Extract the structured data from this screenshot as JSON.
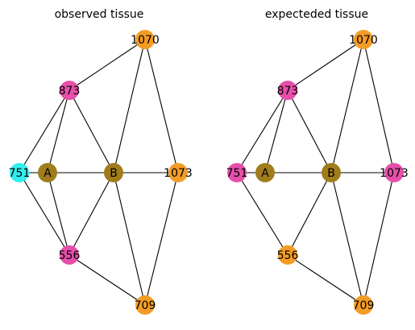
{
  "colors": {
    "olive": "#a07c1c",
    "pink": "#e64fa9",
    "orange": "#f39c25",
    "cyan": "#2ff0ee",
    "edge": "#000000"
  },
  "panels": [
    {
      "title": "observed tissue",
      "nodes": [
        {
          "id": "1070",
          "label": "1070",
          "color": "orange"
        },
        {
          "id": "873",
          "label": "873",
          "color": "pink"
        },
        {
          "id": "751",
          "label": "751",
          "color": "cyan"
        },
        {
          "id": "A",
          "label": "A",
          "color": "olive"
        },
        {
          "id": "B",
          "label": "B",
          "color": "olive"
        },
        {
          "id": "1073",
          "label": "1073",
          "color": "orange"
        },
        {
          "id": "556",
          "label": "556",
          "color": "pink"
        },
        {
          "id": "709",
          "label": "709",
          "color": "orange"
        }
      ],
      "edges": [
        [
          "873",
          "1070"
        ],
        [
          "1070",
          "B"
        ],
        [
          "1070",
          "1073"
        ],
        [
          "873",
          "751"
        ],
        [
          "873",
          "A"
        ],
        [
          "873",
          "B"
        ],
        [
          "751",
          "A"
        ],
        [
          "A",
          "B"
        ],
        [
          "B",
          "1073"
        ],
        [
          "751",
          "556"
        ],
        [
          "A",
          "556"
        ],
        [
          "B",
          "556"
        ],
        [
          "B",
          "709"
        ],
        [
          "556",
          "709"
        ],
        [
          "1073",
          "709"
        ]
      ]
    },
    {
      "title": "expecteded tissue",
      "nodes": [
        {
          "id": "1070",
          "label": "1070",
          "color": "orange"
        },
        {
          "id": "873",
          "label": "873",
          "color": "pink"
        },
        {
          "id": "751",
          "label": "751",
          "color": "pink"
        },
        {
          "id": "A",
          "label": "A",
          "color": "olive"
        },
        {
          "id": "B",
          "label": "B",
          "color": "olive"
        },
        {
          "id": "1073",
          "label": "1073",
          "color": "pink"
        },
        {
          "id": "556",
          "label": "556",
          "color": "orange"
        },
        {
          "id": "709",
          "label": "709",
          "color": "orange"
        }
      ],
      "edges": [
        [
          "873",
          "1070"
        ],
        [
          "1070",
          "B"
        ],
        [
          "1070",
          "1073"
        ],
        [
          "873",
          "751"
        ],
        [
          "873",
          "A"
        ],
        [
          "873",
          "B"
        ],
        [
          "751",
          "A"
        ],
        [
          "A",
          "B"
        ],
        [
          "B",
          "1073"
        ],
        [
          "751",
          "556"
        ],
        [
          "B",
          "556"
        ],
        [
          "B",
          "709"
        ],
        [
          "556",
          "709"
        ],
        [
          "1073",
          "709"
        ]
      ]
    }
  ]
}
